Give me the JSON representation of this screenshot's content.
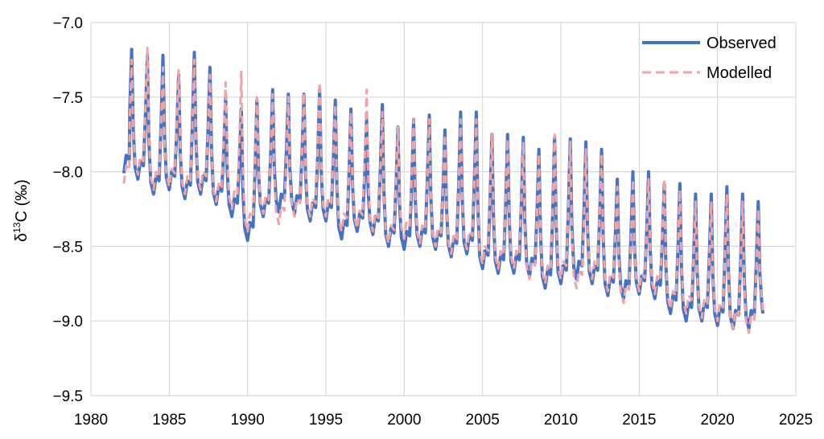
{
  "chart_data": {
    "type": "line",
    "ylabel": {
      "main": "δ",
      "sup": "13",
      "rest": "C (‰)"
    },
    "xlim": [
      1980,
      2025
    ],
    "ylim": [
      -9.5,
      -7.0
    ],
    "xticks": [
      1980,
      1985,
      1990,
      1995,
      2000,
      2005,
      2010,
      2015,
      2020,
      2025
    ],
    "yticks": [
      -7.0,
      -7.5,
      -8.0,
      -8.5,
      -9.0,
      -9.5
    ],
    "ytick_labels": [
      "−7.0",
      "−7.5",
      "−8.0",
      "−8.5",
      "−9.0",
      "−9.5"
    ],
    "grid": true,
    "legend_position": "top-right",
    "series": [
      {
        "name": "Observed",
        "color": "#4472c4",
        "style": "solid",
        "troughs": [
          [
            1982.1,
            -8.01
          ],
          [
            1983.0,
            -8.05
          ],
          [
            1984.0,
            -8.15
          ],
          [
            1985.0,
            -8.12
          ],
          [
            1986.0,
            -8.18
          ],
          [
            1987.0,
            -8.15
          ],
          [
            1988.0,
            -8.22
          ],
          [
            1989.0,
            -8.3
          ],
          [
            1990.0,
            -8.46
          ],
          [
            1991.0,
            -8.3
          ],
          [
            1992.0,
            -8.27
          ],
          [
            1993.0,
            -8.28
          ],
          [
            1994.0,
            -8.33
          ],
          [
            1995.0,
            -8.33
          ],
          [
            1996.0,
            -8.45
          ],
          [
            1997.0,
            -8.4
          ],
          [
            1998.0,
            -8.42
          ],
          [
            1999.0,
            -8.5
          ],
          [
            2000.0,
            -8.52
          ],
          [
            2001.0,
            -8.5
          ],
          [
            2002.0,
            -8.52
          ],
          [
            2003.0,
            -8.57
          ],
          [
            2004.0,
            -8.55
          ],
          [
            2005.0,
            -8.65
          ],
          [
            2006.0,
            -8.68
          ],
          [
            2007.0,
            -8.68
          ],
          [
            2008.0,
            -8.7
          ],
          [
            2009.0,
            -8.78
          ],
          [
            2010.0,
            -8.75
          ],
          [
            2011.0,
            -8.72
          ],
          [
            2012.0,
            -8.75
          ],
          [
            2013.0,
            -8.83
          ],
          [
            2014.0,
            -8.85
          ],
          [
            2015.0,
            -8.82
          ],
          [
            2016.0,
            -8.85
          ],
          [
            2017.0,
            -8.95
          ],
          [
            2018.0,
            -9.0
          ],
          [
            2019.0,
            -9.0
          ],
          [
            2020.0,
            -9.03
          ],
          [
            2021.0,
            -9.05
          ],
          [
            2022.0,
            -9.05
          ],
          [
            2022.9,
            -8.95
          ]
        ],
        "peaks": [
          [
            1982.6,
            -7.18
          ],
          [
            1983.6,
            -7.22
          ],
          [
            1984.6,
            -7.22
          ],
          [
            1985.6,
            -7.35
          ],
          [
            1986.6,
            -7.2
          ],
          [
            1987.6,
            -7.3
          ],
          [
            1988.6,
            -7.5
          ],
          [
            1989.6,
            -7.58
          ],
          [
            1990.6,
            -7.52
          ],
          [
            1991.6,
            -7.45
          ],
          [
            1992.6,
            -7.48
          ],
          [
            1993.6,
            -7.48
          ],
          [
            1994.6,
            -7.45
          ],
          [
            1995.6,
            -7.52
          ],
          [
            1996.6,
            -7.58
          ],
          [
            1997.6,
            -7.65
          ],
          [
            1998.6,
            -7.55
          ],
          [
            1999.6,
            -7.7
          ],
          [
            2000.6,
            -7.65
          ],
          [
            2001.6,
            -7.62
          ],
          [
            2002.6,
            -7.72
          ],
          [
            2003.6,
            -7.6
          ],
          [
            2004.6,
            -7.6
          ],
          [
            2005.6,
            -7.75
          ],
          [
            2006.6,
            -7.75
          ],
          [
            2007.6,
            -7.77
          ],
          [
            2008.6,
            -7.85
          ],
          [
            2009.6,
            -7.77
          ],
          [
            2010.6,
            -7.78
          ],
          [
            2011.6,
            -7.8
          ],
          [
            2012.6,
            -7.85
          ],
          [
            2013.6,
            -8.05
          ],
          [
            2014.6,
            -8.0
          ],
          [
            2015.6,
            -8.0
          ],
          [
            2016.6,
            -8.08
          ],
          [
            2017.6,
            -8.08
          ],
          [
            2018.6,
            -8.15
          ],
          [
            2019.6,
            -8.15
          ],
          [
            2020.6,
            -8.1
          ],
          [
            2021.6,
            -8.15
          ],
          [
            2022.6,
            -8.2
          ]
        ]
      },
      {
        "name": "Modelled",
        "color": "#f0a3a8",
        "style": "dashed",
        "troughs": [
          [
            1982.1,
            -8.08
          ],
          [
            1983.0,
            -8.02
          ],
          [
            1984.0,
            -8.12
          ],
          [
            1985.0,
            -8.1
          ],
          [
            1986.0,
            -8.15
          ],
          [
            1987.0,
            -8.12
          ],
          [
            1988.0,
            -8.2
          ],
          [
            1989.0,
            -8.25
          ],
          [
            1990.0,
            -8.4
          ],
          [
            1991.0,
            -8.28
          ],
          [
            1992.0,
            -8.35
          ],
          [
            1993.0,
            -8.3
          ],
          [
            1994.0,
            -8.3
          ],
          [
            1995.0,
            -8.3
          ],
          [
            1996.0,
            -8.4
          ],
          [
            1997.0,
            -8.38
          ],
          [
            1998.0,
            -8.4
          ],
          [
            1999.0,
            -8.48
          ],
          [
            2000.0,
            -8.45
          ],
          [
            2001.0,
            -8.48
          ],
          [
            2002.0,
            -8.5
          ],
          [
            2003.0,
            -8.55
          ],
          [
            2004.0,
            -8.52
          ],
          [
            2005.0,
            -8.62
          ],
          [
            2006.0,
            -8.65
          ],
          [
            2007.0,
            -8.65
          ],
          [
            2008.0,
            -8.72
          ],
          [
            2009.0,
            -8.75
          ],
          [
            2010.0,
            -8.72
          ],
          [
            2011.0,
            -8.78
          ],
          [
            2012.0,
            -8.72
          ],
          [
            2013.0,
            -8.8
          ],
          [
            2014.0,
            -8.88
          ],
          [
            2015.0,
            -8.8
          ],
          [
            2016.0,
            -8.82
          ],
          [
            2017.0,
            -8.92
          ],
          [
            2018.0,
            -8.95
          ],
          [
            2019.0,
            -8.98
          ],
          [
            2020.0,
            -9.0
          ],
          [
            2021.0,
            -9.05
          ],
          [
            2022.0,
            -9.08
          ],
          [
            2022.9,
            -8.93
          ]
        ],
        "peaks": [
          [
            1982.6,
            -7.25
          ],
          [
            1983.6,
            -7.17
          ],
          [
            1984.6,
            -7.3
          ],
          [
            1985.6,
            -7.32
          ],
          [
            1986.6,
            -7.25
          ],
          [
            1987.6,
            -7.35
          ],
          [
            1988.6,
            -7.4
          ],
          [
            1989.6,
            -7.33
          ],
          [
            1990.6,
            -7.5
          ],
          [
            1991.6,
            -7.48
          ],
          [
            1992.6,
            -7.5
          ],
          [
            1993.6,
            -7.47
          ],
          [
            1994.6,
            -7.4
          ],
          [
            1995.6,
            -7.55
          ],
          [
            1996.6,
            -7.6
          ],
          [
            1997.6,
            -7.45
          ],
          [
            1998.6,
            -7.6
          ],
          [
            1999.6,
            -7.7
          ],
          [
            2000.6,
            -7.65
          ],
          [
            2001.6,
            -7.65
          ],
          [
            2002.6,
            -7.75
          ],
          [
            2003.6,
            -7.65
          ],
          [
            2004.6,
            -7.65
          ],
          [
            2005.6,
            -7.75
          ],
          [
            2006.6,
            -7.78
          ],
          [
            2007.6,
            -7.8
          ],
          [
            2008.6,
            -7.88
          ],
          [
            2009.6,
            -7.75
          ],
          [
            2010.6,
            -7.8
          ],
          [
            2011.6,
            -7.85
          ],
          [
            2012.6,
            -7.88
          ],
          [
            2013.6,
            -8.1
          ],
          [
            2014.6,
            -8.05
          ],
          [
            2015.6,
            -8.05
          ],
          [
            2016.6,
            -8.05
          ],
          [
            2017.6,
            -8.12
          ],
          [
            2018.6,
            -8.2
          ],
          [
            2019.6,
            -8.2
          ],
          [
            2020.6,
            -8.15
          ],
          [
            2021.6,
            -8.2
          ],
          [
            2022.6,
            -8.25
          ]
        ]
      }
    ]
  }
}
